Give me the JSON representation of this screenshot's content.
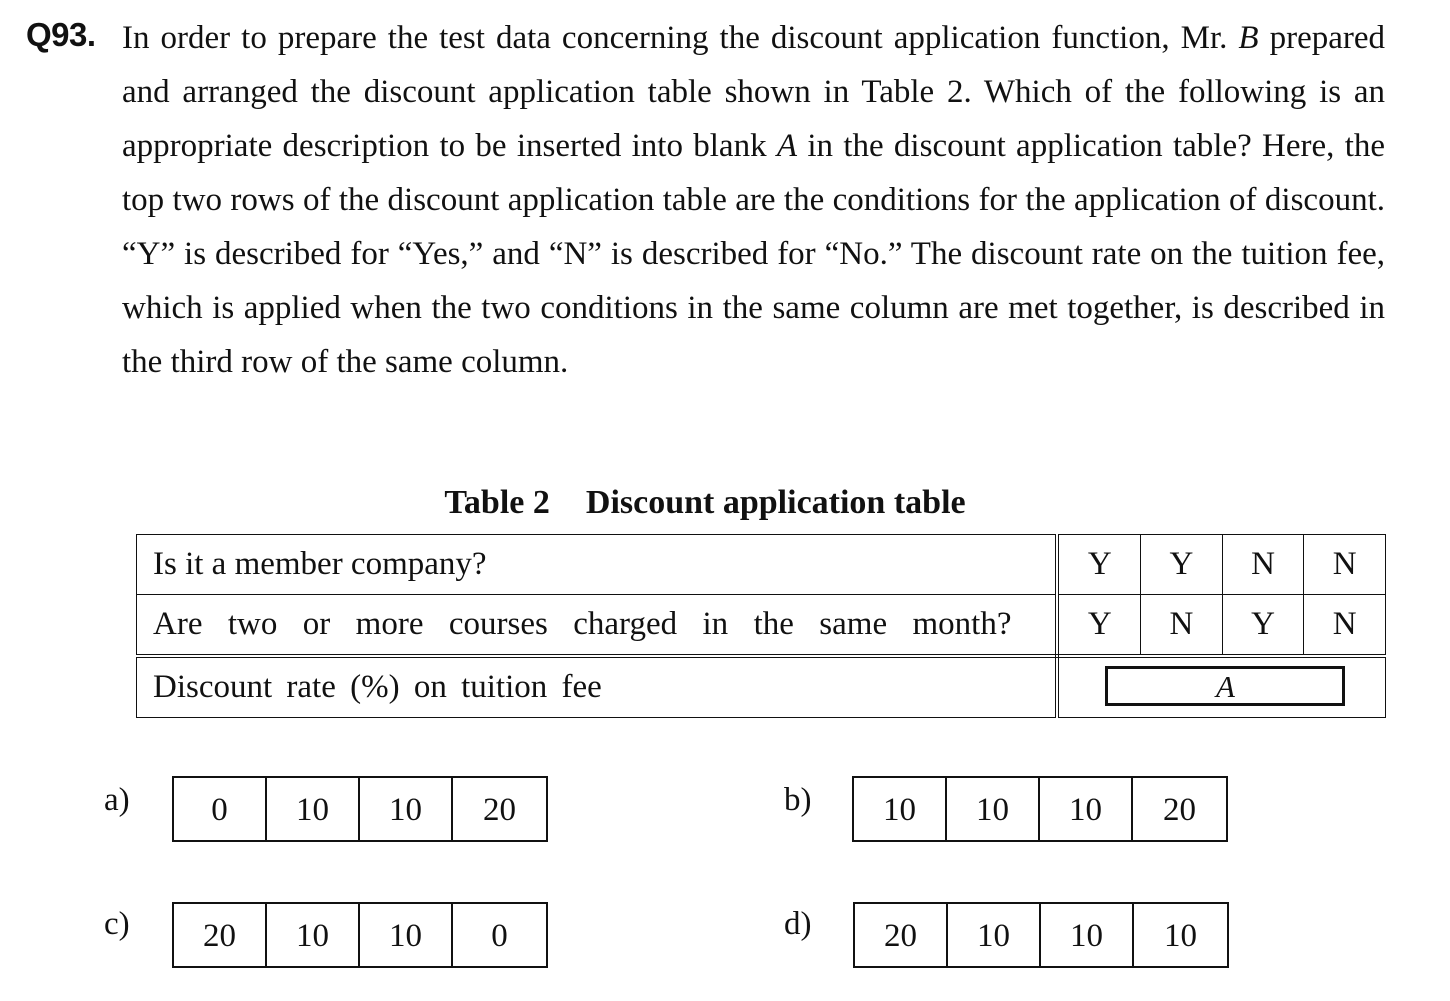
{
  "question": {
    "number": "Q93.",
    "text_part1": "In order to prepare the test data concerning the discount application function, Mr.",
    "person": "B",
    "text_part2": "prepared and arranged the discount application table shown in Table 2.   Which of the following is an appropriate description to be inserted into blank",
    "blank_label": "A",
    "text_part3": "in the discount application table?   Here, the top two rows of the discount application table are the conditions for the application of discount.   “Y” is described for “Yes,” and “N” is described for “No.”   The discount rate on the tuition fee, which is applied when the two conditions in the same column are met together, is described in the third row of the same column."
  },
  "table": {
    "caption_number": "Table 2",
    "caption_title": "Discount application table",
    "rows": [
      {
        "condition": "Is it a member company?",
        "values": [
          "Y",
          "Y",
          "N",
          "N"
        ]
      },
      {
        "condition": "Are two or more courses charged in the same month?",
        "values": [
          "Y",
          "N",
          "Y",
          "N"
        ]
      }
    ],
    "result_label": "Discount rate (%) on tuition fee",
    "result_blank": "A"
  },
  "options": [
    {
      "label": "a)",
      "values": [
        "0",
        "10",
        "10",
        "20"
      ]
    },
    {
      "label": "b)",
      "values": [
        "10",
        "10",
        "10",
        "20"
      ]
    },
    {
      "label": "c)",
      "values": [
        "20",
        "10",
        "10",
        "0"
      ]
    },
    {
      "label": "d)",
      "values": [
        "20",
        "10",
        "10",
        "10"
      ]
    }
  ]
}
